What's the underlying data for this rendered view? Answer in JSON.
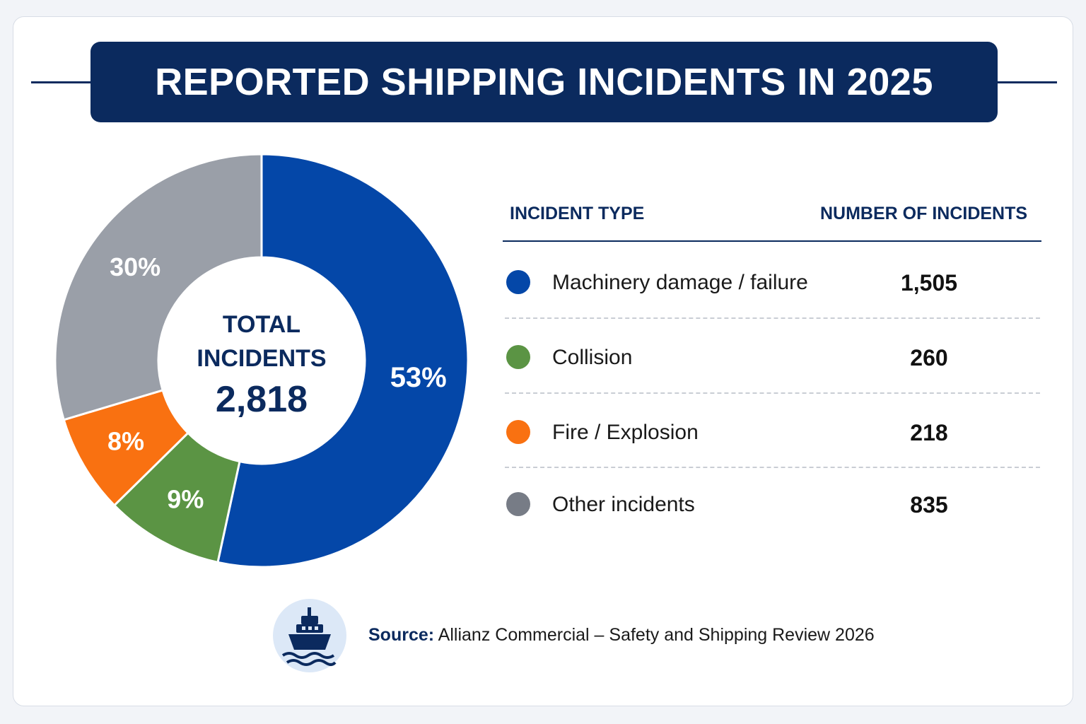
{
  "title": "REPORTED SHIPPING INCIDENTS IN 2025",
  "chart_data": {
    "type": "pie",
    "title": "REPORTED SHIPPING INCIDENTS IN 2025",
    "center_label_line1": "TOTAL",
    "center_label_line2": "INCIDENTS",
    "total": "2,818",
    "legend_position": "right",
    "categories": [
      "Machinery damage / failure",
      "Collision",
      "Fire / Explosion",
      "Other incidents"
    ],
    "values": [
      1505,
      260,
      218,
      835
    ],
    "percent_labels": [
      "53%",
      "9%",
      "8%",
      "30%"
    ],
    "colors": [
      "#0447a8",
      "#5b9444",
      "#f97111",
      "#9a9fa8"
    ]
  },
  "table": {
    "headers": [
      "INCIDENT TYPE",
      "NUMBER OF INCIDENTS"
    ],
    "rows": [
      {
        "label": "Machinery damage / failure",
        "value": "1,505",
        "color": "#0447a8"
      },
      {
        "label": "Collision",
        "value": "260",
        "color": "#5b9444"
      },
      {
        "label": "Fire / Explosion",
        "value": "218",
        "color": "#f97111"
      },
      {
        "label": "Other incidents",
        "value": "835",
        "color": "#777c86"
      }
    ]
  },
  "source": {
    "label": "Source:",
    "text": "Allianz Commercial – Safety and Shipping Review 2026",
    "icon": "ship-icon"
  }
}
